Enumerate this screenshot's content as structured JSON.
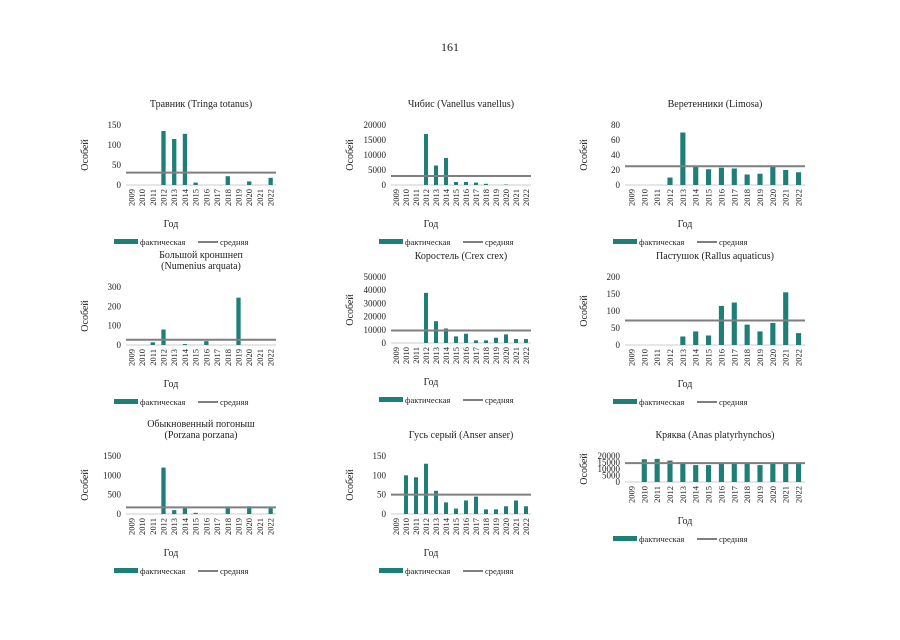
{
  "page": {
    "number": "161"
  },
  "colors": {
    "bar": "#1e7f78",
    "avg": "#7f7f7f",
    "axis": "#555555"
  },
  "legend": {
    "actual": "фактическая",
    "average": "средняя"
  },
  "chart_data": [
    {
      "type": "bar",
      "title": [
        "Травник (Tringa totanus)"
      ],
      "xlabel": "Год",
      "ylabel": "Особей",
      "categories": [
        "2009",
        "2010",
        "2011",
        "2012",
        "2013",
        "2014",
        "2015",
        "2016",
        "2017",
        "2018",
        "2019",
        "2020",
        "2021",
        "2022"
      ],
      "values": [
        0,
        0,
        0,
        135,
        115,
        128,
        6,
        0,
        0,
        22,
        0,
        9,
        0,
        18
      ],
      "average": 31,
      "ylim": [
        0,
        150
      ],
      "yticks": [
        0,
        50,
        100,
        150
      ]
    },
    {
      "type": "bar",
      "title": [
        "Чибис (Vanellus vanellus)"
      ],
      "xlabel": "Год",
      "ylabel": "Особей",
      "categories": [
        "2009",
        "2010",
        "2011",
        "2012",
        "2013",
        "2014",
        "2015",
        "2016",
        "2017",
        "2018",
        "2019",
        "2020",
        "2021",
        "2022"
      ],
      "values": [
        0,
        0,
        0,
        17000,
        6500,
        9000,
        1000,
        1000,
        800,
        400,
        0,
        150,
        0,
        0
      ],
      "average": 3000,
      "ylim": [
        0,
        20000
      ],
      "yticks": [
        0,
        5000,
        10000,
        15000,
        20000
      ]
    },
    {
      "type": "bar",
      "title": [
        "Веретенники (Limosa)"
      ],
      "xlabel": "Год",
      "ylabel": "Особей",
      "categories": [
        "2009",
        "2010",
        "2011",
        "2012",
        "2013",
        "2014",
        "2015",
        "2016",
        "2017",
        "2018",
        "2019",
        "2020",
        "2021",
        "2022"
      ],
      "values": [
        0,
        0,
        0,
        10,
        70,
        25,
        21,
        23,
        22,
        14,
        15,
        24,
        20,
        17
      ],
      "average": 25,
      "ylim": [
        0,
        80
      ],
      "yticks": [
        0,
        20,
        40,
        60,
        80
      ]
    },
    {
      "type": "bar",
      "title": [
        "Большой кроншнеп",
        "(Numenius arquata)"
      ],
      "xlabel": "Год",
      "ylabel": "Особей",
      "categories": [
        "2009",
        "2010",
        "2011",
        "2012",
        "2013",
        "2014",
        "2015",
        "2016",
        "2017",
        "2018",
        "2019",
        "2020",
        "2021",
        "2022"
      ],
      "values": [
        0,
        0,
        14,
        80,
        0,
        5,
        0,
        20,
        0,
        0,
        245,
        0,
        0,
        0
      ],
      "average": 27,
      "ylim": [
        0,
        300
      ],
      "yticks": [
        0,
        100,
        200,
        300
      ]
    },
    {
      "type": "bar",
      "title": [
        "Коростель (Crex crex)"
      ],
      "xlabel": "Год",
      "ylabel": "Особей",
      "categories": [
        "2009",
        "2010",
        "2011",
        "2012",
        "2013",
        "2014",
        "2015",
        "2016",
        "2017",
        "2018",
        "2019",
        "2020",
        "2021",
        "2022"
      ],
      "values": [
        0,
        0,
        0,
        38000,
        16500,
        11000,
        5000,
        7000,
        2000,
        2000,
        4000,
        6500,
        3000,
        3000
      ],
      "average": 9500,
      "ylim": [
        0,
        50000
      ],
      "yticks": [
        0,
        10000,
        20000,
        30000,
        40000,
        50000
      ]
    },
    {
      "type": "bar",
      "title": [
        "Пастушок (Rallus aquaticus)"
      ],
      "xlabel": "Год",
      "ylabel": "Особей",
      "categories": [
        "2009",
        "2010",
        "2011",
        "2012",
        "2013",
        "2014",
        "2015",
        "2016",
        "2017",
        "2018",
        "2019",
        "2020",
        "2021",
        "2022"
      ],
      "values": [
        0,
        0,
        0,
        0,
        25,
        40,
        28,
        115,
        125,
        60,
        40,
        65,
        155,
        35
      ],
      "average": 72,
      "ylim": [
        0,
        200
      ],
      "yticks": [
        0,
        50,
        100,
        150,
        200
      ]
    },
    {
      "type": "bar",
      "title": [
        "Обыкновенный погоныш",
        "(Porzana porzana)"
      ],
      "xlabel": "Год",
      "ylabel": "Особей",
      "categories": [
        "2009",
        "2010",
        "2011",
        "2012",
        "2013",
        "2014",
        "2015",
        "2016",
        "2017",
        "2018",
        "2019",
        "2020",
        "2021",
        "2022"
      ],
      "values": [
        0,
        0,
        0,
        1200,
        100,
        150,
        30,
        0,
        0,
        150,
        0,
        200,
        0,
        150
      ],
      "average": 170,
      "ylim": [
        0,
        1500
      ],
      "yticks": [
        0,
        500,
        1000,
        1500
      ]
    },
    {
      "type": "bar",
      "title": [
        "Гусь серый (Anser anser)"
      ],
      "xlabel": "Год",
      "ylabel": "Особей",
      "categories": [
        "2009",
        "2010",
        "2011",
        "2012",
        "2013",
        "2014",
        "2015",
        "2016",
        "2017",
        "2018",
        "2019",
        "2020",
        "2021",
        "2022"
      ],
      "values": [
        0,
        100,
        95,
        130,
        60,
        30,
        14,
        35,
        45,
        12,
        12,
        20,
        35,
        20
      ],
      "average": 50,
      "ylim": [
        0,
        150
      ],
      "yticks": [
        0,
        50,
        100,
        150
      ]
    },
    {
      "type": "bar",
      "title": [
        "Кряква (Anas platyrhynchos)"
      ],
      "xlabel": "Год",
      "ylabel": "Особей",
      "categories": [
        "2009",
        "2010",
        "2011",
        "2012",
        "2013",
        "2014",
        "2015",
        "2016",
        "2017",
        "2018",
        "2019",
        "2020",
        "2021",
        "2022"
      ],
      "values": [
        0,
        17500,
        17800,
        16500,
        14000,
        13000,
        13000,
        14000,
        14000,
        14500,
        13000,
        14000,
        14500,
        14000
      ],
      "average": 14500,
      "ylim": [
        0,
        20000
      ],
      "yticks": [
        0,
        5000,
        10000,
        15000,
        20000
      ]
    }
  ]
}
